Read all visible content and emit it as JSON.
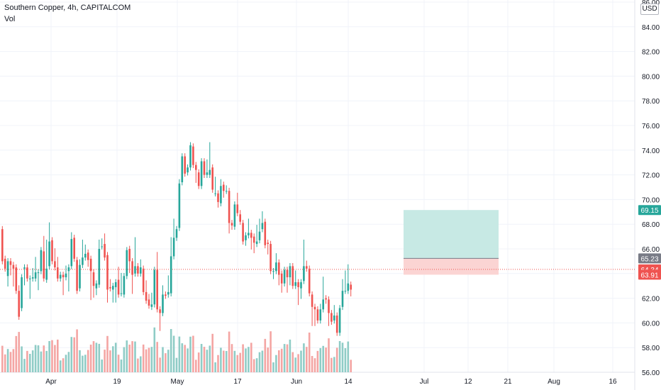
{
  "legend": {
    "symbol": "Southern Copper, 4h, CAPITALCOM",
    "volume_label": "Vol"
  },
  "currency": "USD",
  "price_tags": [
    {
      "value": "69.15",
      "color": "#26a69a"
    },
    {
      "value": "65.23",
      "color": "#787b86"
    },
    {
      "value": "64.34",
      "color": "#ef5350"
    },
    {
      "value": "63.91",
      "color": "#ef5350"
    }
  ],
  "colors": {
    "up": "#26a69a",
    "down": "#ef5350",
    "volume_up": "#8fccc6",
    "volume_down": "#f4a5a3",
    "profit_zone": "#c7e9e4",
    "stop_zone": "#fbd4d3",
    "grid": "#f0f3fa",
    "axis_text": "#131722"
  },
  "chart_data": {
    "type": "candlestick",
    "y_axis": {
      "range": [
        56,
        86
      ],
      "ticks": [
        "56.00",
        "58.00",
        "60.00",
        "62.00",
        "64.00",
        "66.00",
        "68.00",
        "70.00",
        "72.00",
        "74.00",
        "76.00",
        "78.00",
        "80.00",
        "82.00",
        "84.00",
        "86.00"
      ]
    },
    "x_axis": {
      "ticks": [
        "Apr",
        "19",
        "May",
        "17",
        "Jun",
        "14",
        "Jul",
        "12",
        "21",
        "Aug",
        "16"
      ]
    },
    "candles": [
      [
        67.6,
        65.0,
        65.3
      ],
      [
        65.2,
        64.4,
        64.9
      ],
      [
        63.8,
        65.0,
        63.2
      ],
      [
        65.0,
        64.7,
        64.1
      ],
      [
        64.7,
        64.4,
        63.2
      ],
      [
        64.5,
        62.6,
        64.1
      ],
      [
        62.6,
        60.5,
        62.8
      ],
      [
        61.2,
        63.7,
        62.3
      ],
      [
        64.4,
        64.5,
        63.3
      ],
      [
        64.5,
        63.6,
        64.3
      ],
      [
        63.6,
        63.6,
        62.2
      ],
      [
        63.6,
        63.7,
        64.2
      ],
      [
        63.6,
        64.1,
        65.1
      ],
      [
        64.1,
        64.1,
        62.9
      ],
      [
        64.2,
        65.9,
        65.5
      ],
      [
        65.8,
        63.6,
        66.8
      ],
      [
        63.5,
        64.4,
        66.5
      ],
      [
        64.6,
        66.6,
        67.9
      ],
      [
        66.7,
        65.0,
        65.9
      ],
      [
        65.0,
        64.5,
        65.8
      ],
      [
        64.5,
        63.6,
        65.1
      ],
      [
        63.6,
        63.9,
        63.8
      ],
      [
        63.9,
        63.7,
        62.5
      ],
      [
        63.7,
        64.0,
        64.4
      ],
      [
        64.2,
        64.5,
        62.8
      ],
      [
        64.6,
        66.8,
        67.1
      ],
      [
        66.9,
        65.2,
        66.0
      ],
      [
        65.1,
        62.6,
        62.9
      ],
      [
        62.8,
        64.7,
        64.9
      ],
      [
        64.7,
        65.3,
        66.5
      ],
      [
        65.3,
        65.6,
        66.1
      ],
      [
        65.7,
        65.1,
        64.8
      ],
      [
        65.2,
        64.2,
        62.1
      ],
      [
        64.1,
        63.0,
        62.3
      ],
      [
        62.8,
        63.2,
        62.5
      ],
      [
        63.1,
        66.0,
        66.5
      ],
      [
        66.2,
        66.2,
        66.6
      ],
      [
        66.4,
        65.3,
        67.0
      ],
      [
        65.5,
        62.7,
        61.9
      ],
      [
        62.9,
        62.8,
        63.3
      ],
      [
        62.7,
        63.0,
        61.9
      ],
      [
        62.9,
        63.3,
        61.9
      ],
      [
        63.5,
        62.3,
        64.3
      ],
      [
        62.4,
        62.4,
        63.8
      ],
      [
        62.3,
        63.8,
        63.5
      ],
      [
        63.8,
        65.9,
        65.5
      ],
      [
        66.0,
        65.0,
        64.3
      ],
      [
        65.0,
        63.9,
        62.6
      ],
      [
        64.0,
        64.6,
        66.7
      ],
      [
        64.6,
        64.0,
        64.0
      ],
      [
        64.0,
        64.5,
        64.9
      ],
      [
        64.4,
        62.5,
        62.6
      ],
      [
        62.5,
        61.8,
        63.2
      ],
      [
        61.9,
        61.4,
        62.1
      ],
      [
        61.3,
        61.5,
        62.2
      ],
      [
        61.5,
        64.3,
        63.9
      ],
      [
        64.3,
        61.1,
        65.5
      ],
      [
        61.1,
        60.8,
        59.6
      ],
      [
        60.8,
        62.3,
        62.8
      ],
      [
        62.3,
        62.2,
        62.3
      ],
      [
        62.3,
        62.5,
        63.6
      ],
      [
        62.4,
        65.4,
        66.7
      ],
      [
        65.4,
        66.9,
        68.2
      ],
      [
        66.9,
        67.6,
        67.2
      ],
      [
        67.7,
        71.3,
        71.4
      ],
      [
        71.4,
        73.5,
        73.1
      ],
      [
        73.5,
        72.1,
        72.7
      ],
      [
        72.2,
        72.6,
        72.5
      ],
      [
        72.6,
        74.4,
        74.3
      ],
      [
        74.3,
        72.8,
        73.6
      ],
      [
        72.8,
        72.4,
        71.6
      ],
      [
        72.2,
        71.1,
        71.3
      ],
      [
        71.1,
        73.1,
        73.0
      ],
      [
        73.1,
        72.0,
        72.9
      ],
      [
        72.0,
        72.2,
        73.0
      ],
      [
        72.0,
        72.4,
        74.4
      ],
      [
        72.6,
        70.8,
        71.0
      ],
      [
        70.5,
        70.5,
        71.6
      ],
      [
        70.5,
        69.8,
        69.6
      ],
      [
        69.7,
        71.1,
        71.4
      ],
      [
        71.2,
        70.7,
        70.4
      ],
      [
        70.7,
        70.7,
        70.9
      ],
      [
        70.7,
        68.1,
        67.5
      ],
      [
        68.1,
        67.9,
        67.8
      ],
      [
        67.8,
        69.6,
        68.4
      ],
      [
        69.6,
        68.9,
        70.3
      ],
      [
        68.8,
        68.2,
        68.9
      ],
      [
        68.1,
        66.6,
        67.0
      ],
      [
        66.7,
        67.1,
        66.5
      ],
      [
        67.1,
        67.3,
        68.2
      ],
      [
        67.3,
        66.9,
        66.2
      ],
      [
        67.0,
        66.5,
        65.9
      ],
      [
        66.4,
        66.6,
        67.7
      ],
      [
        66.7,
        67.4,
        68.2
      ],
      [
        67.6,
        68.1,
        68.8
      ],
      [
        68.2,
        66.3,
        66.6
      ],
      [
        66.5,
        66.4,
        65.8
      ],
      [
        66.4,
        64.2,
        65.9
      ],
      [
        64.2,
        64.2,
        63.8
      ],
      [
        64.2,
        64.9,
        65.4
      ],
      [
        64.9,
        63.9,
        63.3
      ],
      [
        64.0,
        63.2,
        62.7
      ],
      [
        63.2,
        64.3,
        64.3
      ],
      [
        64.3,
        63.7,
        62.7
      ],
      [
        63.7,
        64.6,
        63.3
      ],
      [
        64.6,
        63.0,
        63.4
      ],
      [
        63.0,
        63.3,
        64.0
      ],
      [
        63.3,
        62.9,
        61.7
      ],
      [
        62.8,
        63.3,
        62.2
      ],
      [
        63.4,
        64.6,
        66.5
      ],
      [
        64.6,
        64.4,
        64.8
      ],
      [
        64.4,
        62.4,
        62.6
      ],
      [
        62.3,
        61.3,
        60.0
      ],
      [
        61.3,
        61.1,
        60.0
      ],
      [
        61.1,
        60.2,
        60.6
      ],
      [
        60.2,
        61.1,
        61.3
      ],
      [
        61.1,
        61.9,
        63.5
      ],
      [
        62.0,
        61.9,
        61.8
      ],
      [
        61.9,
        60.8,
        60.0
      ],
      [
        60.8,
        60.1,
        60.6
      ],
      [
        60.2,
        60.6,
        61.2
      ],
      [
        60.6,
        59.2,
        59.4
      ],
      [
        59.2,
        61.2,
        61.1
      ],
      [
        61.3,
        62.6,
        63.3
      ],
      [
        62.6,
        62.6,
        64.0
      ],
      [
        62.6,
        63.2,
        64.5
      ],
      [
        63.1,
        62.7,
        62.4
      ]
    ]
  }
}
